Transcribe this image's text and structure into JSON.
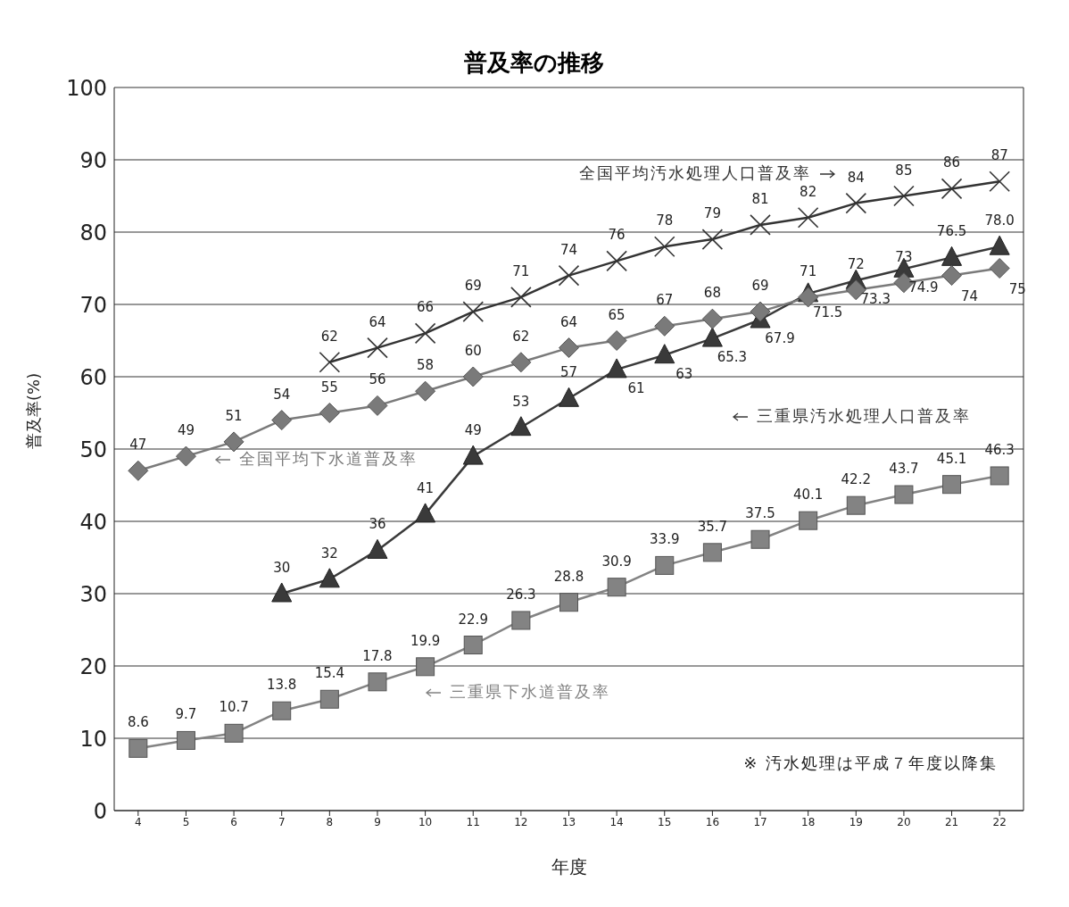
{
  "chart_data": {
    "type": "line",
    "title": "普及率の推移",
    "xlabel": "年度",
    "ylabel": "普及率(%)",
    "categories": [
      "4",
      "5",
      "6",
      "7",
      "8",
      "9",
      "10",
      "11",
      "12",
      "13",
      "14",
      "15",
      "16",
      "17",
      "18",
      "19",
      "20",
      "21",
      "22"
    ],
    "ylim": [
      0,
      100
    ],
    "yticks": [
      0,
      10,
      20,
      30,
      40,
      50,
      60,
      70,
      80,
      90,
      100
    ],
    "grid": "y",
    "legend": "center",
    "series": [
      {
        "name": "全国平均汚水処理人口普及率",
        "color": "#333333",
        "marker": "cross",
        "values": [
          null,
          null,
          null,
          null,
          62,
          64,
          66,
          69,
          71,
          74,
          76,
          78,
          79,
          81,
          82,
          84,
          85,
          86,
          87
        ],
        "value_labels": [
          null,
          null,
          null,
          null,
          "62",
          "64",
          "66",
          "69",
          "71",
          "74",
          "76",
          "78",
          "79",
          "81",
          "82",
          "84",
          "85",
          "86",
          "87"
        ]
      },
      {
        "name": "三重県汚水処理人口普及率",
        "color": "#3a3a3a",
        "marker": "triangle",
        "values": [
          null,
          null,
          null,
          30,
          32,
          36,
          41,
          49,
          53,
          57,
          61,
          63,
          65.3,
          67.9,
          71.5,
          73.3,
          74.9,
          76.5,
          78.0
        ],
        "value_labels": [
          null,
          null,
          null,
          "30",
          "32",
          "36",
          "41",
          "49",
          "53",
          "57",
          "61",
          "63",
          "65.3",
          "67.9",
          "71.5",
          "73.3",
          "74.9",
          "76.5",
          "78.0"
        ]
      },
      {
        "name": "全国平均下水道普及率",
        "color": "#7a7a7a",
        "marker": "diamond",
        "values": [
          47,
          49,
          51,
          54,
          55,
          56,
          58,
          60,
          62,
          64,
          65,
          67,
          68,
          69,
          71,
          72,
          73,
          74,
          75
        ],
        "value_labels": [
          "47",
          "49",
          "51",
          "54",
          "55",
          "56",
          "58",
          "60",
          "62",
          "64",
          "65",
          "67",
          "68",
          "69",
          "71",
          "72",
          "73",
          "74",
          "75"
        ]
      },
      {
        "name": "三重県下水道普及率",
        "color": "#838383",
        "marker": "square",
        "values": [
          8.6,
          9.7,
          10.7,
          13.8,
          15.4,
          17.8,
          19.9,
          22.9,
          26.3,
          28.8,
          30.9,
          33.9,
          35.7,
          37.5,
          40.1,
          42.2,
          43.7,
          45.1,
          46.3
        ],
        "value_labels": [
          "8.6",
          "9.7",
          "10.7",
          "13.8",
          "15.4",
          "17.8",
          "19.9",
          "22.9",
          "26.3",
          "28.8",
          "30.9",
          "33.9",
          "35.7",
          "37.5",
          "40.1",
          "42.2",
          "43.7",
          "45.1",
          "46.3"
        ]
      }
    ],
    "annotations": [
      "※ 汚水処理は平成７年度以降集"
    ]
  }
}
